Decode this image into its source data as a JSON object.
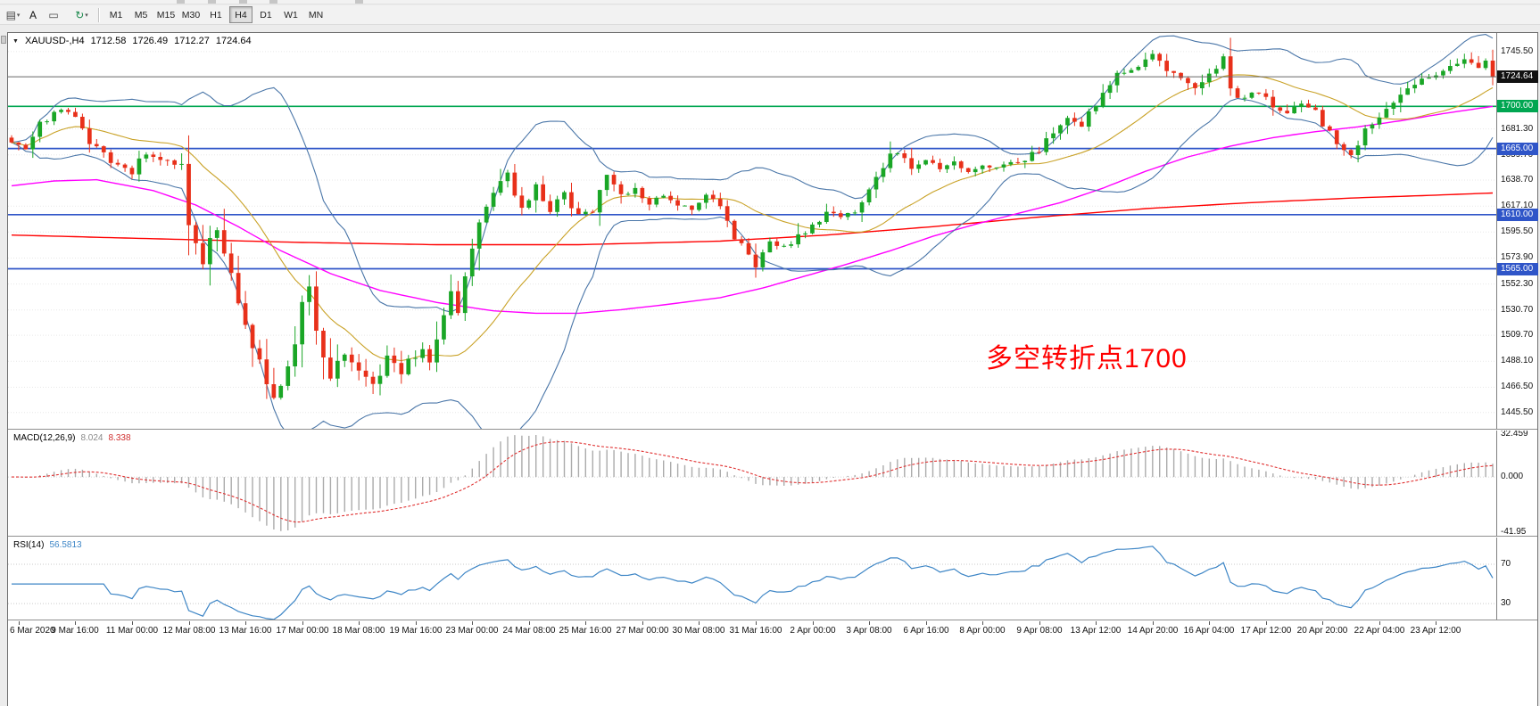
{
  "toolbar": {
    "icons": [
      {
        "name": "chart-objects-menu-icon",
        "glyph": "▤",
        "caret": "▾",
        "color": "#444444"
      },
      {
        "name": "text-label-tool-icon",
        "glyph": "A",
        "caret": "",
        "color": "#111111"
      },
      {
        "name": "text-box-tool-icon",
        "glyph": "▭",
        "caret": "",
        "color": "#444444"
      },
      {
        "name": "refresh-template-icon",
        "glyph": "↻",
        "caret": "▾",
        "color": "#1D8A4E"
      }
    ],
    "timeframes": [
      "M1",
      "M5",
      "M15",
      "M30",
      "H1",
      "H4",
      "D1",
      "W1",
      "MN"
    ],
    "active_timeframe": "H4"
  },
  "chart_header": {
    "menu_glyph": "▼",
    "symbol_period": "XAUUSD-,H4",
    "open": "1712.58",
    "high": "1726.49",
    "low": "1712.27",
    "close": "1724.64"
  },
  "colors": {
    "candle_up": "#1AA626",
    "candle_down": "#E8301A",
    "bollinger": "#4A76A8",
    "ma_fast": "#C9A227",
    "ma_mid": "#FF00FF",
    "ma_slow": "#FF0000",
    "hline_green": "#00A651",
    "hline_blue": "#2F55C8",
    "price_line": "#666666",
    "current_tag_bg": "#111111",
    "macd_hist": "#ABABAB",
    "macd_signal": "#E03131",
    "rsi_line": "#3E86C6",
    "grid": "#E7E7E7",
    "annotation": "#FF0000"
  },
  "chart_data": {
    "type": "candlestick",
    "symbol": "XAUUSD-",
    "period": "H4",
    "ohlc_display": {
      "open": 1712.58,
      "high": 1726.49,
      "low": 1712.27,
      "close": 1724.64
    },
    "candles_count": 210,
    "last_close": 1724.64,
    "y_range": [
      1432,
      1761
    ],
    "y_axis_labels": [
      "1745.50",
      "1681.30",
      "1659.70",
      "1638.70",
      "1617.10",
      "1595.50",
      "1573.90",
      "1552.30",
      "1530.70",
      "1509.70",
      "1488.10",
      "1466.50",
      "1445.50"
    ],
    "time_labels": [
      "6 Mar 2020",
      "9 Mar 16:00",
      "11 Mar 00:00",
      "12 Mar 08:00",
      "13 Mar 16:00",
      "17 Mar 00:00",
      "18 Mar 08:00",
      "19 Mar 16:00",
      "23 Mar 00:00",
      "24 Mar 08:00",
      "25 Mar 16:00",
      "27 Mar 00:00",
      "30 Mar 08:00",
      "31 Mar 16:00",
      "2 Apr 00:00",
      "3 Apr 08:00",
      "6 Apr 16:00",
      "8 Apr 00:00",
      "9 Apr 08:00",
      "13 Apr 12:00",
      "14 Apr 20:00",
      "16 Apr 04:00",
      "17 Apr 12:00",
      "20 Apr 20:00",
      "22 Apr 04:00",
      "23 Apr 12:00"
    ],
    "hlines": [
      {
        "price": 1700.0,
        "label": "1700.00",
        "color_key": "hline_green"
      },
      {
        "price": 1665.0,
        "label": "1665.00",
        "color_key": "hline_blue"
      },
      {
        "price": 1610.0,
        "label": "1610.00",
        "color_key": "hline_blue"
      },
      {
        "price": 1565.0,
        "label": "1565.00",
        "color_key": "hline_blue"
      }
    ],
    "current_price_line": {
      "price": 1724.64,
      "label": "1724.64"
    },
    "price_path": [
      [
        0,
        1670
      ],
      [
        2,
        1663
      ],
      [
        4,
        1684
      ],
      [
        7,
        1697
      ],
      [
        9,
        1688
      ],
      [
        11,
        1672
      ],
      [
        13,
        1659
      ],
      [
        15,
        1652
      ],
      [
        17,
        1645
      ],
      [
        19,
        1661
      ],
      [
        21,
        1657
      ],
      [
        23,
        1650
      ],
      [
        24,
        1648
      ],
      [
        25,
        1601
      ],
      [
        26,
        1585
      ],
      [
        27,
        1570
      ],
      [
        28,
        1588
      ],
      [
        29,
        1599
      ],
      [
        30,
        1578
      ],
      [
        31,
        1560
      ],
      [
        33,
        1520
      ],
      [
        34,
        1502
      ],
      [
        35,
        1488
      ],
      [
        36,
        1470
      ],
      [
        37,
        1459
      ],
      [
        38,
        1467
      ],
      [
        39,
        1482
      ],
      [
        40,
        1505
      ],
      [
        41,
        1535
      ],
      [
        42,
        1548
      ],
      [
        43,
        1515
      ],
      [
        44,
        1490
      ],
      [
        45,
        1473
      ],
      [
        46,
        1484
      ],
      [
        47,
        1494
      ],
      [
        48,
        1486
      ],
      [
        49,
        1479
      ],
      [
        50,
        1473
      ],
      [
        51,
        1468
      ],
      [
        52,
        1480
      ],
      [
        53,
        1491
      ],
      [
        54,
        1484
      ],
      [
        55,
        1478
      ],
      [
        56,
        1486
      ],
      [
        57,
        1493
      ],
      [
        58,
        1497
      ],
      [
        59,
        1489
      ],
      [
        61,
        1522
      ],
      [
        62,
        1546
      ],
      [
        63,
        1532
      ],
      [
        64,
        1561
      ],
      [
        66,
        1601
      ],
      [
        68,
        1631
      ],
      [
        70,
        1642
      ],
      [
        71,
        1625
      ],
      [
        72,
        1614
      ],
      [
        73,
        1622
      ],
      [
        74,
        1634
      ],
      [
        75,
        1620
      ],
      [
        76,
        1611
      ],
      [
        77,
        1620
      ],
      [
        78,
        1629
      ],
      [
        79,
        1616
      ],
      [
        80,
        1609
      ],
      [
        82,
        1616
      ],
      [
        84,
        1643
      ],
      [
        86,
        1626
      ],
      [
        88,
        1633
      ],
      [
        90,
        1619
      ],
      [
        92,
        1625
      ],
      [
        94,
        1618
      ],
      [
        96,
        1614
      ],
      [
        98,
        1626
      ],
      [
        100,
        1617
      ],
      [
        102,
        1591
      ],
      [
        104,
        1578
      ],
      [
        105,
        1567
      ],
      [
        107,
        1589
      ],
      [
        109,
        1583
      ],
      [
        111,
        1593
      ],
      [
        113,
        1601
      ],
      [
        115,
        1613
      ],
      [
        117,
        1607
      ],
      [
        119,
        1613
      ],
      [
        121,
        1629
      ],
      [
        123,
        1651
      ],
      [
        125,
        1663
      ],
      [
        127,
        1648
      ],
      [
        129,
        1656
      ],
      [
        131,
        1649
      ],
      [
        133,
        1653
      ],
      [
        135,
        1646
      ],
      [
        137,
        1651
      ],
      [
        139,
        1649
      ],
      [
        141,
        1653
      ],
      [
        143,
        1656
      ],
      [
        145,
        1663
      ],
      [
        147,
        1681
      ],
      [
        149,
        1689
      ],
      [
        151,
        1685
      ],
      [
        153,
        1702
      ],
      [
        155,
        1721
      ],
      [
        157,
        1729
      ],
      [
        159,
        1736
      ],
      [
        161,
        1744
      ],
      [
        163,
        1729
      ],
      [
        165,
        1721
      ],
      [
        167,
        1714
      ],
      [
        169,
        1726
      ],
      [
        171,
        1738
      ],
      [
        172,
        1713
      ],
      [
        174,
        1706
      ],
      [
        176,
        1713
      ],
      [
        178,
        1697
      ],
      [
        180,
        1694
      ],
      [
        182,
        1701
      ],
      [
        184,
        1696
      ],
      [
        186,
        1676
      ],
      [
        188,
        1661
      ],
      [
        189,
        1658
      ],
      [
        191,
        1679
      ],
      [
        193,
        1691
      ],
      [
        195,
        1701
      ],
      [
        197,
        1713
      ],
      [
        199,
        1721
      ],
      [
        201,
        1727
      ],
      [
        203,
        1733
      ],
      [
        205,
        1739
      ],
      [
        207,
        1731
      ],
      [
        208,
        1737
      ],
      [
        209,
        1724.64
      ]
    ],
    "overlays": {
      "bollinger_period": 20,
      "bollinger_dev": 2,
      "ma_red_path": [
        [
          0,
          1593
        ],
        [
          20,
          1590
        ],
        [
          40,
          1587
        ],
        [
          60,
          1585
        ],
        [
          80,
          1585
        ],
        [
          100,
          1588
        ],
        [
          115,
          1593
        ],
        [
          130,
          1600
        ],
        [
          145,
          1608
        ],
        [
          160,
          1615
        ],
        [
          175,
          1620
        ],
        [
          190,
          1624
        ],
        [
          200,
          1626
        ],
        [
          209,
          1628
        ]
      ],
      "ma_magenta_path": [
        [
          0,
          1634
        ],
        [
          6,
          1638
        ],
        [
          12,
          1639
        ],
        [
          20,
          1630
        ],
        [
          26,
          1618
        ],
        [
          32,
          1600
        ],
        [
          38,
          1580
        ],
        [
          45,
          1561
        ],
        [
          52,
          1547
        ],
        [
          60,
          1537
        ],
        [
          68,
          1530
        ],
        [
          74,
          1528
        ],
        [
          80,
          1528
        ],
        [
          86,
          1531
        ],
        [
          92,
          1535
        ],
        [
          100,
          1541
        ],
        [
          106,
          1549
        ],
        [
          112,
          1559
        ],
        [
          118,
          1569
        ],
        [
          124,
          1580
        ],
        [
          130,
          1592
        ],
        [
          136,
          1602
        ],
        [
          142,
          1611
        ],
        [
          148,
          1620
        ],
        [
          154,
          1632
        ],
        [
          160,
          1646
        ],
        [
          166,
          1658
        ],
        [
          172,
          1667
        ],
        [
          178,
          1674
        ],
        [
          184,
          1679
        ],
        [
          190,
          1683
        ],
        [
          196,
          1688
        ],
        [
          202,
          1694
        ],
        [
          209,
          1700
        ]
      ]
    },
    "indicators": {
      "macd": {
        "name": "MACD(12,26,9)",
        "params": [
          12,
          26,
          9
        ],
        "value_main": "8.024",
        "value_signal": "8.338",
        "axis_labels": [
          "32.459",
          "0.000",
          "-41.95"
        ],
        "axis_values": [
          32.459,
          0,
          -41.95
        ],
        "y_range": [
          -44.6,
          35.2
        ]
      },
      "rsi": {
        "name": "RSI(14)",
        "period": 14,
        "value": "56.5813",
        "levels": [
          70,
          30
        ],
        "axis_labels": [
          "70",
          "30"
        ],
        "y_range": [
          13.7,
          97.3
        ]
      }
    },
    "annotation": {
      "text": "多空转折点1700",
      "color": "#FF0000"
    }
  }
}
